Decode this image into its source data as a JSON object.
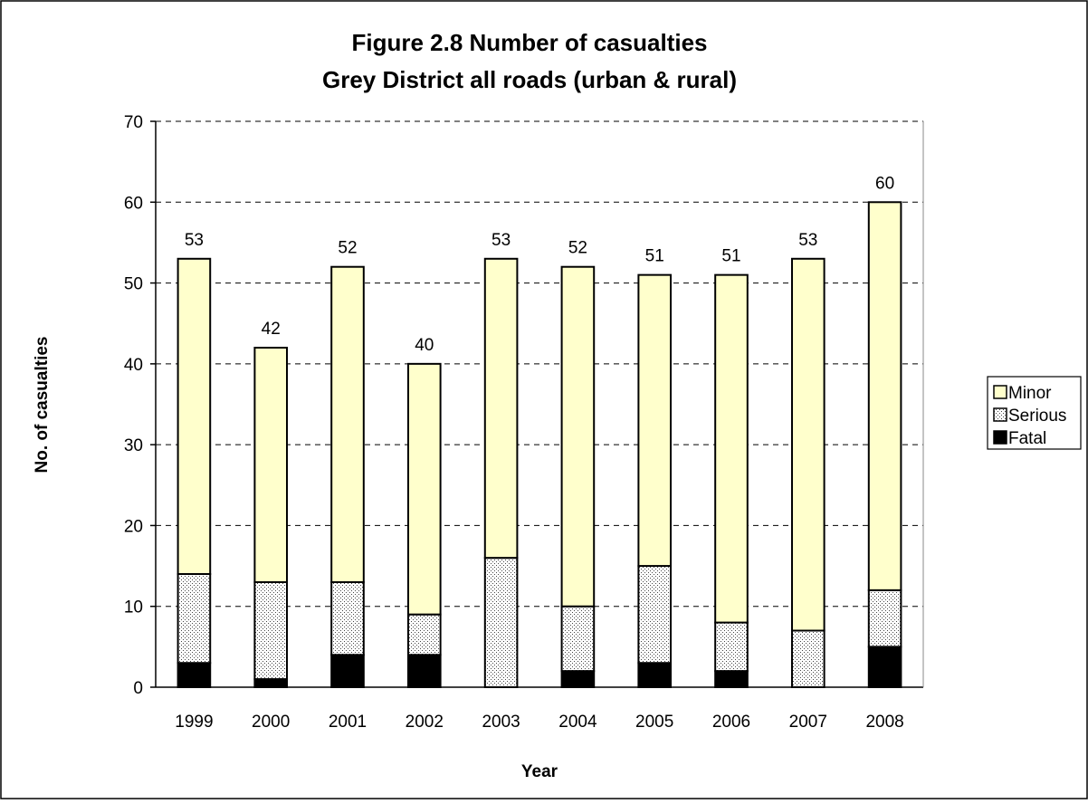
{
  "chart_data": {
    "type": "bar",
    "stacked": true,
    "title_lines": [
      "Figure 2.8 Number of casualties",
      "Grey District all roads (urban & rural)"
    ],
    "xlabel": "Year",
    "ylabel": "No. of casualties",
    "categories": [
      "1999",
      "2000",
      "2001",
      "2002",
      "2003",
      "2004",
      "2005",
      "2006",
      "2007",
      "2008"
    ],
    "series": [
      {
        "name": "Fatal",
        "values": [
          3,
          1,
          4,
          4,
          0,
          2,
          3,
          2,
          0,
          5
        ],
        "color": "#000000"
      },
      {
        "name": "Serious",
        "values": [
          11,
          12,
          9,
          5,
          16,
          8,
          12,
          6,
          7,
          7
        ],
        "color": "#d9d9d9"
      },
      {
        "name": "Minor",
        "values": [
          39,
          29,
          39,
          31,
          37,
          42,
          36,
          43,
          46,
          48
        ],
        "color": "#ffffcc"
      }
    ],
    "totals": [
      "53",
      "42",
      "52",
      "40",
      "53",
      "52",
      "51",
      "51",
      "53",
      "60"
    ],
    "ylim": [
      0,
      70
    ],
    "yticks": [
      "0",
      "10",
      "20",
      "30",
      "40",
      "50",
      "60",
      "70"
    ],
    "grid": true,
    "legend_position": "right",
    "legend_order": [
      "Minor",
      "Serious",
      "Fatal"
    ]
  }
}
